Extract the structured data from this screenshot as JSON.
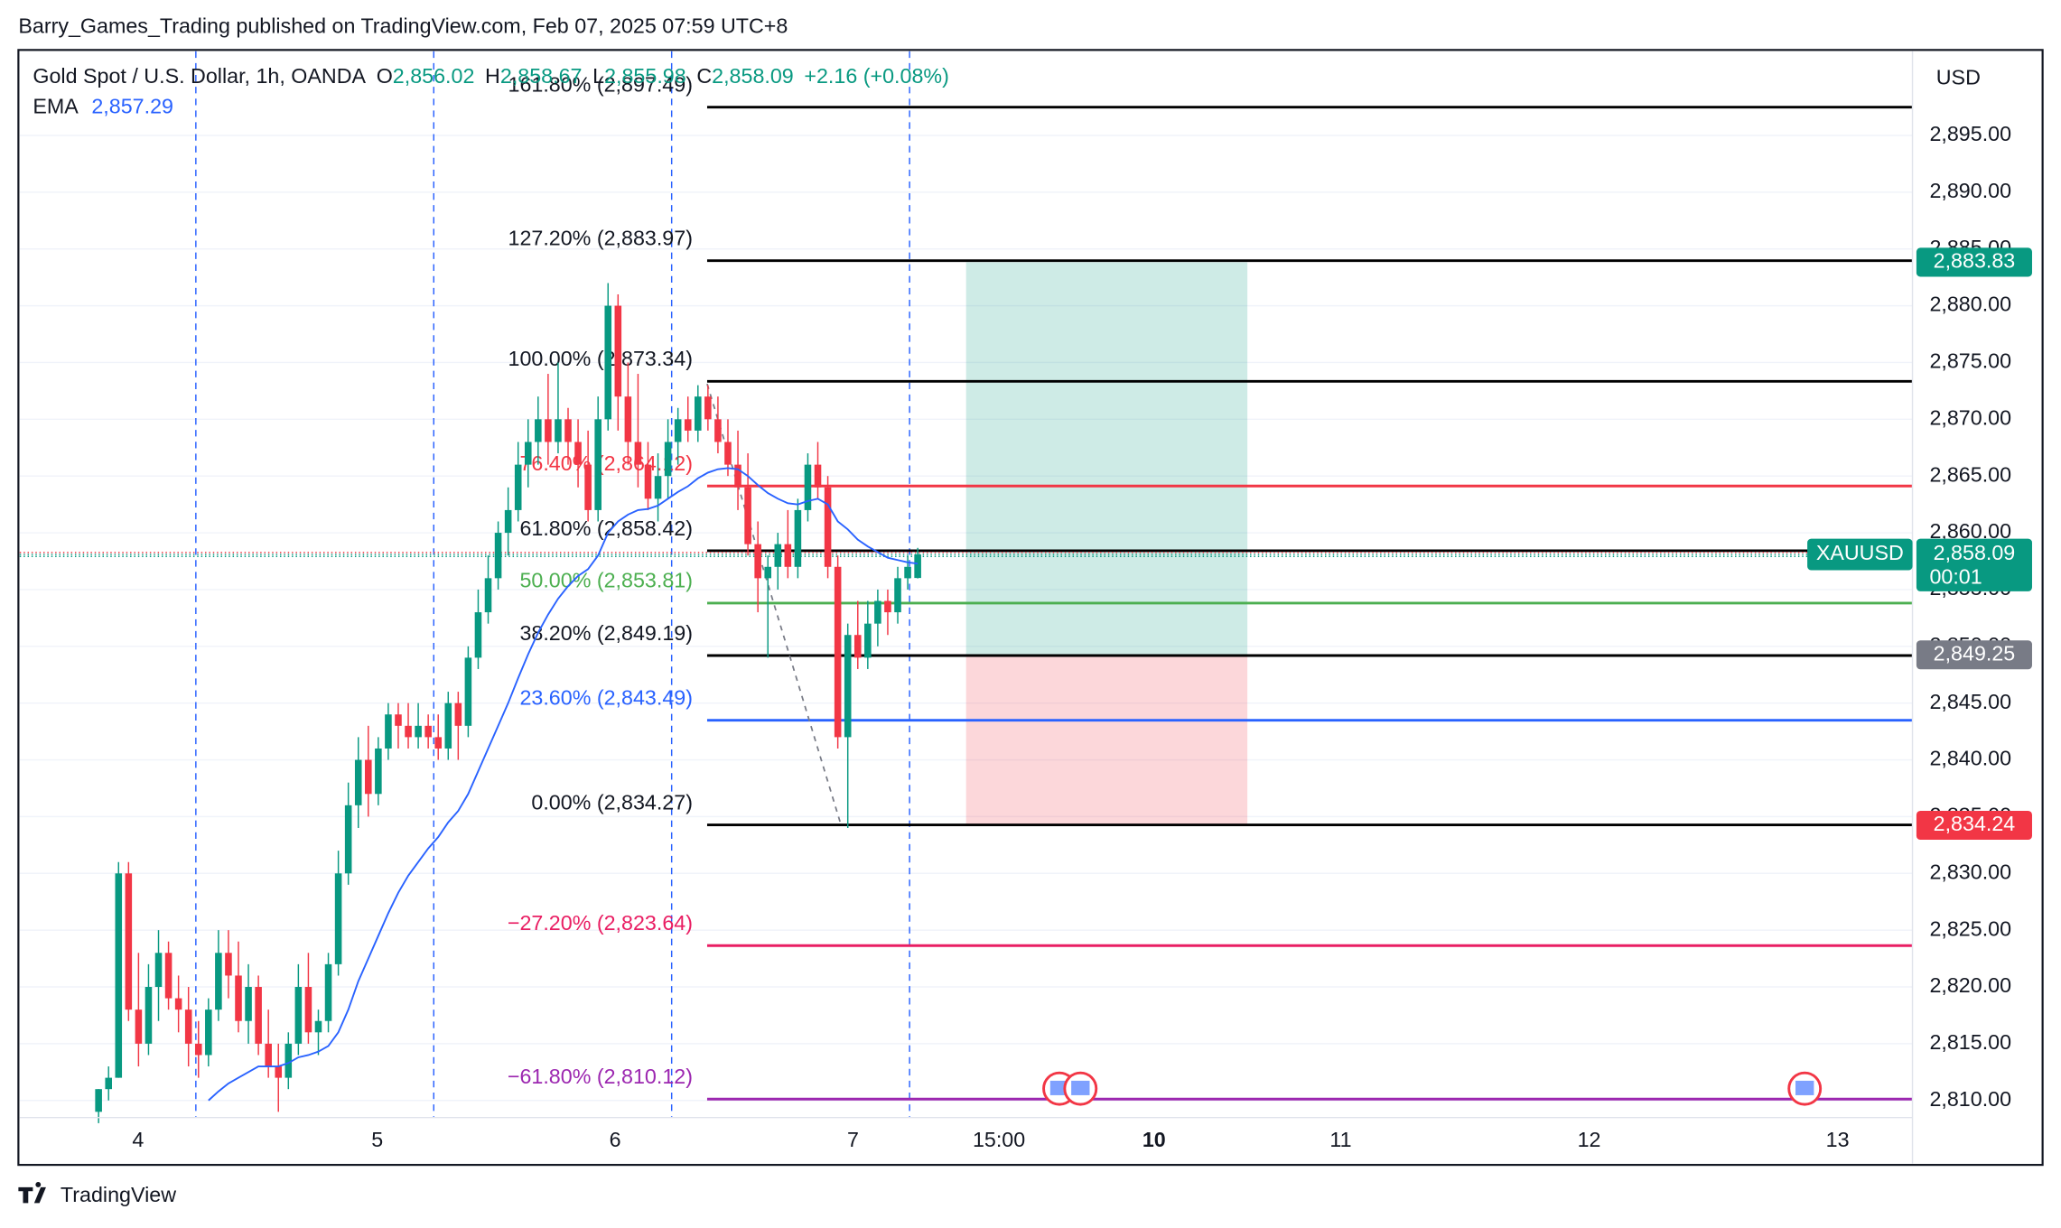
{
  "header": "Barry_Games_Trading published on TradingView.com, Feb 07, 2025 07:59 UTC+8",
  "footer": "TradingView",
  "chart_data": {
    "type": "candlestick",
    "legend": {
      "symbol": "Gold Spot / U.S. Dollar, 1h, OANDA",
      "ohlc": [
        {
          "key": "O",
          "value": "2,856.02"
        },
        {
          "key": "H",
          "value": "2,858.67"
        },
        {
          "key": "L",
          "value": "2,855.98"
        },
        {
          "key": "C",
          "value": "2,858.09"
        }
      ],
      "change": "+2.16 (+0.08%)",
      "ema_label": "EMA",
      "ema_value": "2,857.29"
    },
    "currency": "USD",
    "up_color": "#089981",
    "down_color": "#f23645",
    "ema_color": "#2962ff",
    "categories": [
      "4",
      "5",
      "6",
      "7",
      "15:00",
      "10",
      "11",
      "12",
      "13"
    ],
    "candles": [
      [
        2809,
        2811,
        2808,
        2811
      ],
      [
        2811,
        2813,
        2810,
        2812
      ],
      [
        2812,
        2831,
        2812,
        2830
      ],
      [
        2830,
        2831,
        2817,
        2818
      ],
      [
        2818,
        2823,
        2813,
        2815
      ],
      [
        2815,
        2822,
        2814,
        2820
      ],
      [
        2820,
        2825,
        2817,
        2823
      ],
      [
        2823,
        2824,
        2818,
        2819
      ],
      [
        2819,
        2821,
        2816,
        2818
      ],
      [
        2818,
        2820,
        2813,
        2815
      ],
      [
        2815,
        2817,
        2812,
        2814
      ],
      [
        2814,
        2819,
        2813,
        2818
      ],
      [
        2818,
        2825,
        2817,
        2823
      ],
      [
        2823,
        2825,
        2819,
        2821
      ],
      [
        2821,
        2824,
        2816,
        2817
      ],
      [
        2817,
        2822,
        2815,
        2820
      ],
      [
        2820,
        2821,
        2814,
        2815
      ],
      [
        2815,
        2818,
        2812,
        2813
      ],
      [
        2813,
        2815,
        2809,
        2812
      ],
      [
        2812,
        2816,
        2811,
        2815
      ],
      [
        2815,
        2822,
        2814,
        2820
      ],
      [
        2820,
        2823,
        2815,
        2816
      ],
      [
        2816,
        2818,
        2814,
        2817
      ],
      [
        2817,
        2823,
        2816,
        2822
      ],
      [
        2822,
        2832,
        2821,
        2830
      ],
      [
        2830,
        2838,
        2829,
        2836
      ],
      [
        2836,
        2842,
        2834,
        2840
      ],
      [
        2840,
        2843,
        2835,
        2837
      ],
      [
        2837,
        2842,
        2836,
        2841
      ],
      [
        2841,
        2845,
        2840,
        2844
      ],
      [
        2844,
        2845,
        2841,
        2843
      ],
      [
        2843,
        2845,
        2841,
        2842
      ],
      [
        2842,
        2845,
        2841,
        2843
      ],
      [
        2843,
        2844,
        2841,
        2842
      ],
      [
        2842,
        2844,
        2840,
        2841
      ],
      [
        2841,
        2846,
        2840,
        2845
      ],
      [
        2845,
        2846,
        2840,
        2843
      ],
      [
        2843,
        2850,
        2842,
        2849
      ],
      [
        2849,
        2855,
        2848,
        2853
      ],
      [
        2853,
        2858,
        2852,
        2856
      ],
      [
        2856,
        2861,
        2855,
        2860
      ],
      [
        2860,
        2864,
        2858,
        2862
      ],
      [
        2862,
        2868,
        2861,
        2866
      ],
      [
        2866,
        2870,
        2864,
        2868
      ],
      [
        2868,
        2872,
        2866,
        2870
      ],
      [
        2870,
        2874,
        2866,
        2868
      ],
      [
        2868,
        2875,
        2867,
        2870
      ],
      [
        2870,
        2871,
        2866,
        2868
      ],
      [
        2868,
        2870,
        2864,
        2866
      ],
      [
        2866,
        2869,
        2861,
        2862
      ],
      [
        2862,
        2872,
        2861,
        2870
      ],
      [
        2870,
        2882,
        2869,
        2880
      ],
      [
        2880,
        2881,
        2869,
        2872
      ],
      [
        2872,
        2875,
        2866,
        2868
      ],
      [
        2868,
        2874,
        2864,
        2866
      ],
      [
        2866,
        2868,
        2862,
        2863
      ],
      [
        2863,
        2867,
        2861,
        2865
      ],
      [
        2865,
        2870,
        2863,
        2868
      ],
      [
        2868,
        2871,
        2866,
        2870
      ],
      [
        2870,
        2872,
        2868,
        2869
      ],
      [
        2869,
        2873,
        2868,
        2872
      ],
      [
        2872,
        2873,
        2869,
        2870
      ],
      [
        2870,
        2872,
        2867,
        2868
      ],
      [
        2868,
        2870,
        2865,
        2866
      ],
      [
        2866,
        2869,
        2862,
        2864
      ],
      [
        2864,
        2867,
        2858,
        2859
      ],
      [
        2859,
        2861,
        2853,
        2856
      ],
      [
        2856,
        2858,
        2849,
        2857
      ],
      [
        2857,
        2860,
        2855,
        2859
      ],
      [
        2859,
        2862,
        2856,
        2857
      ],
      [
        2857,
        2863,
        2856,
        2862
      ],
      [
        2862,
        2867,
        2861,
        2866
      ],
      [
        2866,
        2868,
        2863,
        2864
      ],
      [
        2864,
        2865,
        2856,
        2857
      ],
      [
        2857,
        2858,
        2841,
        2842
      ],
      [
        2842,
        2852,
        2834,
        2851
      ],
      [
        2851,
        2854,
        2848,
        2849
      ],
      [
        2849,
        2854,
        2848,
        2852
      ],
      [
        2852,
        2855,
        2850,
        2854
      ],
      [
        2854,
        2855,
        2851,
        2853
      ],
      [
        2853,
        2857,
        2852,
        2856
      ],
      [
        2856,
        2858,
        2855,
        2857
      ],
      [
        2856.02,
        2858.67,
        2855.98,
        2858.09
      ]
    ],
    "ema": [
      null,
      null,
      null,
      null,
      null,
      null,
      null,
      null,
      null,
      null,
      null,
      2810,
      2810.8,
      2811.5,
      2812,
      2812.5,
      2813,
      2813,
      2813,
      2813.3,
      2813.8,
      2814,
      2814.3,
      2814.8,
      2816,
      2818,
      2820.5,
      2822.5,
      2824.5,
      2826.5,
      2828.3,
      2829.8,
      2831,
      2832.2,
      2833.2,
      2834.5,
      2835.5,
      2837,
      2839,
      2841,
      2843,
      2845,
      2847.2,
      2849.3,
      2851.2,
      2852.8,
      2854.2,
      2855.3,
      2856.2,
      2856.8,
      2858,
      2860,
      2861,
      2861.6,
      2862,
      2862.1,
      2862.4,
      2863,
      2863.6,
      2864.1,
      2864.8,
      2865.3,
      2865.6,
      2865.7,
      2865.6,
      2865,
      2864.2,
      2863.5,
      2863,
      2862.6,
      2862.5,
      2862.8,
      2863,
      2862.5,
      2861,
      2860.3,
      2859.4,
      2858.8,
      2858.3,
      2857.8,
      2857.6,
      2857.4,
      2857.29
    ],
    "fib_levels": [
      {
        "label": "161.80% (2,897.49)",
        "price": 2897.49,
        "color": "#000000",
        "text_color": "#131722"
      },
      {
        "label": "127.20% (2,883.97)",
        "price": 2883.97,
        "color": "#000000",
        "text_color": "#131722"
      },
      {
        "label": "100.00% (2,873.34)",
        "price": 2873.34,
        "color": "#000000",
        "text_color": "#131722"
      },
      {
        "label": "76.40% (2,864.12)",
        "price": 2864.12,
        "color": "#f23645",
        "text_color": "#f23645"
      },
      {
        "label": "61.80% (2,858.42)",
        "price": 2858.42,
        "color": "#000000",
        "text_color": "#131722"
      },
      {
        "label": "50.00% (2,853.81)",
        "price": 2853.81,
        "color": "#4caf50",
        "text_color": "#4caf50"
      },
      {
        "label": "38.20% (2,849.19)",
        "price": 2849.19,
        "color": "#000000",
        "text_color": "#131722"
      },
      {
        "label": "23.60% (2,843.49)",
        "price": 2843.49,
        "color": "#2962ff",
        "text_color": "#2962ff"
      },
      {
        "label": "0.00% (2,834.27)",
        "price": 2834.27,
        "color": "#000000",
        "text_color": "#131722"
      },
      {
        "label": "−27.20% (2,823.64)",
        "price": 2823.64,
        "color": "#e91e63",
        "text_color": "#e91e63"
      },
      {
        "label": "−61.80% (2,810.12)",
        "price": 2810.12,
        "color": "#9c27b0",
        "text_color": "#9c27b0"
      }
    ],
    "position": {
      "target": 2883.83,
      "entry": 2849.25,
      "stop": 2834.24
    },
    "badges": [
      {
        "value": 2883.83,
        "label": "2,883.83",
        "color": "#089981"
      },
      {
        "value": 2849.25,
        "label": "2,849.25",
        "color": "#787b86"
      },
      {
        "value": 2834.24,
        "label": "2,834.24",
        "color": "#f23645"
      }
    ],
    "last_price": {
      "value": 2858.09,
      "label": "2,858.09",
      "symbol": "XAUUSD",
      "countdown": "00:01",
      "color": "#089981"
    },
    "ylim": [
      2806,
      2902
    ],
    "yticks": [
      {
        "value": 2810,
        "label": "2,810.00"
      },
      {
        "value": 2815,
        "label": "2,815.00"
      },
      {
        "value": 2820,
        "label": "2,820.00"
      },
      {
        "value": 2825,
        "label": "2,825.00"
      },
      {
        "value": 2830,
        "label": "2,830.00"
      },
      {
        "value": 2835,
        "label": "2,835.00"
      },
      {
        "value": 2840,
        "label": "2,840.00"
      },
      {
        "value": 2845,
        "label": "2,845.00"
      },
      {
        "value": 2850,
        "label": "2,850.00"
      },
      {
        "value": 2855,
        "label": "2,855.00"
      },
      {
        "value": 2860,
        "label": "2,860.00"
      },
      {
        "value": 2865,
        "label": "2,865.00"
      },
      {
        "value": 2870,
        "label": "2,870.00"
      },
      {
        "value": 2875,
        "label": "2,875.00"
      },
      {
        "value": 2880,
        "label": "2,880.00"
      },
      {
        "value": 2885,
        "label": "2,885.00"
      },
      {
        "value": 2890,
        "label": "2,890.00"
      },
      {
        "value": 2895,
        "label": "2,895.00"
      }
    ],
    "grid": true
  }
}
